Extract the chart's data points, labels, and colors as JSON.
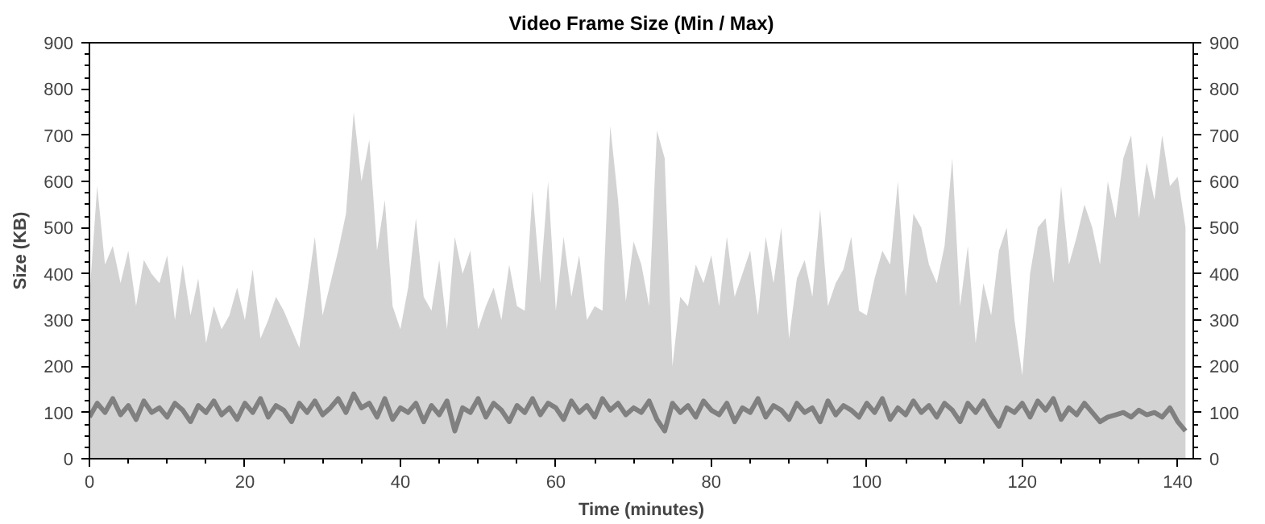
{
  "chart_data": {
    "type": "area",
    "title": "Video Frame Size (Min / Max)",
    "xlabel": "Time (minutes)",
    "ylabel": "Size (KB)",
    "x": [
      0,
      1,
      2,
      3,
      4,
      5,
      6,
      7,
      8,
      9,
      10,
      11,
      12,
      13,
      14,
      15,
      16,
      17,
      18,
      19,
      20,
      21,
      22,
      23,
      24,
      25,
      26,
      27,
      28,
      29,
      30,
      31,
      32,
      33,
      34,
      35,
      36,
      37,
      38,
      39,
      40,
      41,
      42,
      43,
      44,
      45,
      46,
      47,
      48,
      49,
      50,
      51,
      52,
      53,
      54,
      55,
      56,
      57,
      58,
      59,
      60,
      61,
      62,
      63,
      64,
      65,
      66,
      67,
      68,
      69,
      70,
      71,
      72,
      73,
      74,
      75,
      76,
      77,
      78,
      79,
      80,
      81,
      82,
      83,
      84,
      85,
      86,
      87,
      88,
      89,
      90,
      91,
      92,
      93,
      94,
      95,
      96,
      97,
      98,
      99,
      100,
      101,
      102,
      103,
      104,
      105,
      106,
      107,
      108,
      109,
      110,
      111,
      112,
      113,
      114,
      115,
      116,
      117,
      118,
      119,
      120,
      121,
      122,
      123,
      124,
      125,
      126,
      127,
      128,
      129,
      130,
      131,
      132,
      133,
      134,
      135,
      136,
      137,
      138,
      139,
      140,
      141
    ],
    "series": [
      {
        "color": "#d3d3d3",
        "values": [
          350,
          590,
          420,
          460,
          380,
          450,
          330,
          430,
          400,
          380,
          440,
          300,
          420,
          310,
          390,
          250,
          330,
          280,
          310,
          370,
          300,
          410,
          260,
          300,
          350,
          320,
          280,
          240,
          360,
          480,
          310,
          380,
          450,
          530,
          750,
          600,
          690,
          450,
          560,
          330,
          280,
          370,
          520,
          350,
          320,
          430,
          280,
          480,
          400,
          450,
          280,
          330,
          370,
          300,
          420,
          330,
          320,
          580,
          380,
          600,
          320,
          480,
          350,
          440,
          300,
          330,
          320,
          720,
          560,
          340,
          470,
          420,
          330,
          710,
          650,
          200,
          350,
          330,
          420,
          380,
          440,
          330,
          480,
          350,
          400,
          450,
          310,
          480,
          380,
          500,
          260,
          390,
          430,
          350,
          540,
          330,
          380,
          410,
          480,
          320,
          310,
          390,
          450,
          420,
          600,
          350,
          530,
          500,
          420,
          380,
          460,
          650,
          330,
          460,
          250,
          380,
          310,
          450,
          500,
          300,
          180,
          400,
          500,
          520,
          380,
          590,
          420,
          480,
          550,
          500,
          420,
          600,
          520,
          650,
          700,
          520,
          640,
          560,
          700,
          590,
          610,
          500
        ]
      },
      {
        "type": "line",
        "color": "#808080",
        "values": [
          90,
          120,
          100,
          130,
          95,
          115,
          85,
          125,
          100,
          110,
          90,
          120,
          105,
          80,
          115,
          100,
          125,
          95,
          110,
          85,
          120,
          100,
          130,
          90,
          115,
          105,
          80,
          120,
          100,
          125,
          95,
          110,
          130,
          100,
          140,
          110,
          120,
          90,
          130,
          85,
          110,
          100,
          120,
          80,
          115,
          95,
          125,
          60,
          110,
          100,
          130,
          90,
          120,
          105,
          80,
          115,
          100,
          130,
          95,
          120,
          110,
          85,
          125,
          100,
          115,
          90,
          130,
          105,
          120,
          95,
          110,
          100,
          125,
          85,
          60,
          120,
          100,
          115,
          90,
          125,
          105,
          95,
          120,
          80,
          110,
          100,
          130,
          90,
          115,
          105,
          85,
          120,
          100,
          110,
          80,
          125,
          95,
          115,
          105,
          90,
          120,
          100,
          130,
          85,
          110,
          95,
          125,
          100,
          115,
          90,
          120,
          105,
          80,
          120,
          100,
          125,
          95,
          70,
          110,
          100,
          120,
          90,
          125,
          105,
          130,
          85,
          110,
          95,
          120,
          100,
          80,
          90,
          95,
          100,
          90,
          105,
          95,
          100,
          90,
          110,
          80,
          60
        ]
      }
    ],
    "xlim": [
      0,
      142
    ],
    "ylim": [
      0,
      900
    ],
    "xticks": [
      0,
      20,
      40,
      60,
      80,
      100,
      120,
      140
    ],
    "yticks": [
      0,
      100,
      200,
      300,
      400,
      500,
      600,
      700,
      800,
      900
    ],
    "y2lim": [
      0,
      900
    ],
    "y2ticks": [
      0,
      100,
      200,
      300,
      400,
      500,
      600,
      700,
      800,
      900
    ],
    "grid": false
  }
}
